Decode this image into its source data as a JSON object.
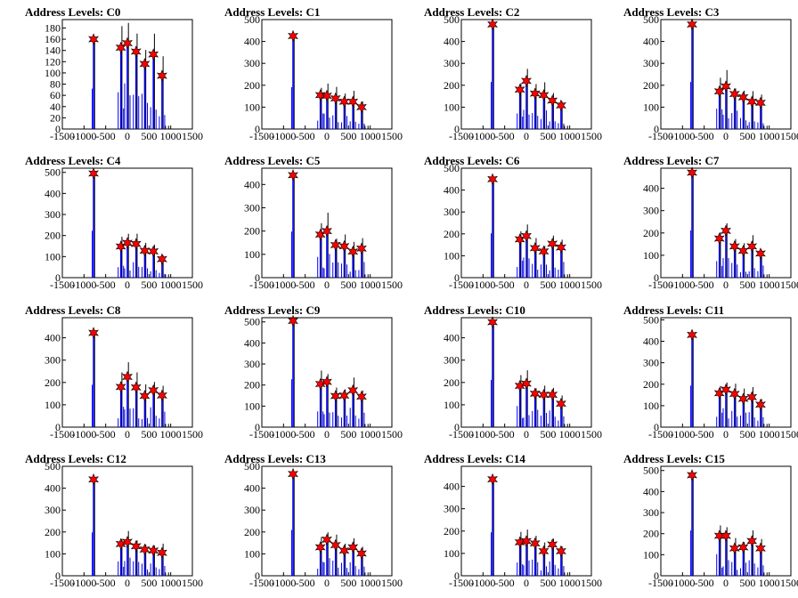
{
  "chart_data": [
    {
      "type": "bar",
      "title": "Address Levels: C0",
      "xlim": [
        -1500,
        1500
      ],
      "ylim": [
        0,
        195
      ],
      "yticks": [
        0,
        20,
        40,
        60,
        80,
        100,
        120,
        140,
        160,
        180
      ],
      "xticks": [
        -1500,
        -1000,
        -500,
        0,
        500,
        1000,
        1500
      ],
      "peaks": [
        {
          "x": -780,
          "y": 160
        },
        {
          "x": -150,
          "y": 145
        },
        {
          "x": 0,
          "y": 153
        },
        {
          "x": 200,
          "y": 138
        },
        {
          "x": 400,
          "y": 116
        },
        {
          "x": 600,
          "y": 133
        },
        {
          "x": 800,
          "y": 95
        }
      ]
    },
    {
      "type": "bar",
      "title": "Address Levels: C1",
      "xlim": [
        -1500,
        1500
      ],
      "ylim": [
        0,
        500
      ],
      "yticks": [
        0,
        100,
        200,
        300,
        400,
        500
      ],
      "xticks": [
        -1500,
        -1000,
        -500,
        0,
        500,
        1000,
        1500
      ],
      "peaks": [
        {
          "x": -780,
          "y": 425
        },
        {
          "x": -150,
          "y": 155
        },
        {
          "x": 0,
          "y": 152
        },
        {
          "x": 200,
          "y": 140
        },
        {
          "x": 400,
          "y": 125
        },
        {
          "x": 600,
          "y": 125
        },
        {
          "x": 800,
          "y": 100
        }
      ]
    },
    {
      "type": "bar",
      "title": "Address Levels: C2",
      "xlim": [
        -1500,
        1500
      ],
      "ylim": [
        0,
        500
      ],
      "yticks": [
        0,
        100,
        200,
        300,
        400,
        500
      ],
      "xticks": [
        -1500,
        -1000,
        -500,
        0,
        500,
        1000,
        1500
      ],
      "peaks": [
        {
          "x": -780,
          "y": 478
        },
        {
          "x": -150,
          "y": 180
        },
        {
          "x": 0,
          "y": 220
        },
        {
          "x": 200,
          "y": 162
        },
        {
          "x": 400,
          "y": 155
        },
        {
          "x": 600,
          "y": 130
        },
        {
          "x": 800,
          "y": 108
        }
      ]
    },
    {
      "type": "bar",
      "title": "Address Levels: C3",
      "xlim": [
        -1500,
        1500
      ],
      "ylim": [
        0,
        500
      ],
      "yticks": [
        0,
        100,
        200,
        300,
        400,
        500
      ],
      "xticks": [
        -1500,
        -1000,
        -500,
        0,
        500,
        1000,
        1500
      ],
      "peaks": [
        {
          "x": -780,
          "y": 478
        },
        {
          "x": -150,
          "y": 172
        },
        {
          "x": 0,
          "y": 195
        },
        {
          "x": 200,
          "y": 160
        },
        {
          "x": 400,
          "y": 145
        },
        {
          "x": 600,
          "y": 125
        },
        {
          "x": 800,
          "y": 120
        }
      ]
    },
    {
      "type": "bar",
      "title": "Address Levels: C4",
      "xlim": [
        -1500,
        1500
      ],
      "ylim": [
        0,
        520
      ],
      "yticks": [
        0,
        100,
        200,
        300,
        400,
        500
      ],
      "xticks": [
        -1500,
        -1000,
        -500,
        0,
        500,
        1000,
        1500
      ],
      "peaks": [
        {
          "x": -780,
          "y": 495
        },
        {
          "x": -150,
          "y": 148
        },
        {
          "x": 0,
          "y": 165
        },
        {
          "x": 200,
          "y": 160
        },
        {
          "x": 400,
          "y": 128
        },
        {
          "x": 600,
          "y": 125
        },
        {
          "x": 800,
          "y": 88
        }
      ]
    },
    {
      "type": "bar",
      "title": "Address Levels: C5",
      "xlim": [
        -1500,
        1500
      ],
      "ylim": [
        0,
        470
      ],
      "yticks": [
        0,
        100,
        200,
        300,
        400
      ],
      "xticks": [
        -1500,
        -1000,
        -500,
        0,
        500,
        1000,
        1500
      ],
      "peaks": [
        {
          "x": -780,
          "y": 440
        },
        {
          "x": -150,
          "y": 185
        },
        {
          "x": 0,
          "y": 200
        },
        {
          "x": 200,
          "y": 140
        },
        {
          "x": 400,
          "y": 135
        },
        {
          "x": 600,
          "y": 112
        },
        {
          "x": 800,
          "y": 125
        }
      ]
    },
    {
      "type": "bar",
      "title": "Address Levels: C6",
      "xlim": [
        -1500,
        1500
      ],
      "ylim": [
        0,
        500
      ],
      "yticks": [
        0,
        100,
        200,
        300,
        400,
        500
      ],
      "xticks": [
        -1500,
        -1000,
        -500,
        0,
        500,
        1000,
        1500
      ],
      "peaks": [
        {
          "x": -780,
          "y": 450
        },
        {
          "x": -150,
          "y": 175
        },
        {
          "x": 0,
          "y": 190
        },
        {
          "x": 200,
          "y": 135
        },
        {
          "x": 400,
          "y": 120
        },
        {
          "x": 600,
          "y": 155
        },
        {
          "x": 800,
          "y": 138
        }
      ]
    },
    {
      "type": "bar",
      "title": "Address Levels: C7",
      "xlim": [
        -1500,
        1500
      ],
      "ylim": [
        0,
        490
      ],
      "yticks": [
        0,
        100,
        200,
        300,
        400
      ],
      "xticks": [
        -1500,
        -1000,
        -500,
        0,
        500,
        1000,
        1500
      ],
      "peaks": [
        {
          "x": -780,
          "y": 470
        },
        {
          "x": -150,
          "y": 175
        },
        {
          "x": 0,
          "y": 210
        },
        {
          "x": 200,
          "y": 140
        },
        {
          "x": 400,
          "y": 120
        },
        {
          "x": 600,
          "y": 140
        },
        {
          "x": 800,
          "y": 108
        }
      ]
    },
    {
      "type": "bar",
      "title": "Address Levels: C8",
      "xlim": [
        -1500,
        1500
      ],
      "ylim": [
        0,
        490
      ],
      "yticks": [
        0,
        100,
        200,
        300,
        400
      ],
      "xticks": [
        -1500,
        -1000,
        -500,
        0,
        500,
        1000,
        1500
      ],
      "peaks": [
        {
          "x": -780,
          "y": 422
        },
        {
          "x": -150,
          "y": 180
        },
        {
          "x": 0,
          "y": 225
        },
        {
          "x": 200,
          "y": 178
        },
        {
          "x": 400,
          "y": 140
        },
        {
          "x": 600,
          "y": 165
        },
        {
          "x": 800,
          "y": 142
        }
      ]
    },
    {
      "type": "bar",
      "title": "Address Levels: C9",
      "xlim": [
        -1500,
        1500
      ],
      "ylim": [
        0,
        520
      ],
      "yticks": [
        0,
        100,
        200,
        300,
        400,
        500
      ],
      "xticks": [
        -1500,
        -1000,
        -500,
        0,
        500,
        1000,
        1500
      ],
      "peaks": [
        {
          "x": -780,
          "y": 505
        },
        {
          "x": -150,
          "y": 205
        },
        {
          "x": 0,
          "y": 215
        },
        {
          "x": 200,
          "y": 148
        },
        {
          "x": 400,
          "y": 150
        },
        {
          "x": 600,
          "y": 175
        },
        {
          "x": 800,
          "y": 145
        }
      ]
    },
    {
      "type": "bar",
      "title": "Address Levels: C10",
      "xlim": [
        -1500,
        1500
      ],
      "ylim": [
        0,
        490
      ],
      "yticks": [
        0,
        100,
        200,
        300,
        400
      ],
      "xticks": [
        -1500,
        -1000,
        -500,
        0,
        500,
        1000,
        1500
      ],
      "peaks": [
        {
          "x": -780,
          "y": 470
        },
        {
          "x": -150,
          "y": 185
        },
        {
          "x": 0,
          "y": 195
        },
        {
          "x": 200,
          "y": 150
        },
        {
          "x": 400,
          "y": 145
        },
        {
          "x": 600,
          "y": 145
        },
        {
          "x": 800,
          "y": 105
        }
      ]
    },
    {
      "type": "bar",
      "title": "Address Levels: C11",
      "xlim": [
        -1500,
        1500
      ],
      "ylim": [
        0,
        510
      ],
      "yticks": [
        0,
        100,
        200,
        300,
        400,
        500
      ],
      "xticks": [
        -1500,
        -1000,
        -500,
        0,
        500,
        1000,
        1500
      ],
      "peaks": [
        {
          "x": -780,
          "y": 430
        },
        {
          "x": -150,
          "y": 158
        },
        {
          "x": 0,
          "y": 175
        },
        {
          "x": 200,
          "y": 155
        },
        {
          "x": 400,
          "y": 132
        },
        {
          "x": 600,
          "y": 140
        },
        {
          "x": 800,
          "y": 105
        }
      ]
    },
    {
      "type": "bar",
      "title": "Address Levels: C12",
      "xlim": [
        -1500,
        1500
      ],
      "ylim": [
        0,
        500
      ],
      "yticks": [
        0,
        100,
        200,
        300,
        400,
        500
      ],
      "xticks": [
        -1500,
        -1000,
        -500,
        0,
        500,
        1000,
        1500
      ],
      "peaks": [
        {
          "x": -780,
          "y": 440
        },
        {
          "x": -150,
          "y": 145
        },
        {
          "x": 0,
          "y": 155
        },
        {
          "x": 200,
          "y": 135
        },
        {
          "x": 400,
          "y": 120
        },
        {
          "x": 600,
          "y": 115
        },
        {
          "x": 800,
          "y": 105
        }
      ]
    },
    {
      "type": "bar",
      "title": "Address Levels: C13",
      "xlim": [
        -1500,
        1500
      ],
      "ylim": [
        0,
        500
      ],
      "yticks": [
        0,
        100,
        200,
        300,
        400,
        500
      ],
      "xticks": [
        -1500,
        -1000,
        -500,
        0,
        500,
        1000,
        1500
      ],
      "peaks": [
        {
          "x": -780,
          "y": 465
        },
        {
          "x": -150,
          "y": 130
        },
        {
          "x": 0,
          "y": 165
        },
        {
          "x": 200,
          "y": 140
        },
        {
          "x": 400,
          "y": 115
        },
        {
          "x": 600,
          "y": 130
        },
        {
          "x": 800,
          "y": 102
        }
      ]
    },
    {
      "type": "bar",
      "title": "Address Levels: C14",
      "xlim": [
        -1500,
        1500
      ],
      "ylim": [
        0,
        490
      ],
      "yticks": [
        0,
        100,
        200,
        300,
        400
      ],
      "xticks": [
        -1500,
        -1000,
        -500,
        0,
        500,
        1000,
        1500
      ],
      "peaks": [
        {
          "x": -780,
          "y": 432
        },
        {
          "x": -150,
          "y": 150
        },
        {
          "x": 0,
          "y": 155
        },
        {
          "x": 200,
          "y": 145
        },
        {
          "x": 400,
          "y": 110
        },
        {
          "x": 600,
          "y": 140
        },
        {
          "x": 800,
          "y": 110
        }
      ]
    },
    {
      "type": "bar",
      "title": "Address Levels: C15",
      "xlim": [
        -1500,
        1500
      ],
      "ylim": [
        0,
        520
      ],
      "yticks": [
        0,
        100,
        200,
        300,
        400,
        500
      ],
      "xticks": [
        -1500,
        -1000,
        -500,
        0,
        500,
        1000,
        1500
      ],
      "peaks": [
        {
          "x": -780,
          "y": 478
        },
        {
          "x": -150,
          "y": 190
        },
        {
          "x": 0,
          "y": 190
        },
        {
          "x": 200,
          "y": 130
        },
        {
          "x": 400,
          "y": 135
        },
        {
          "x": 600,
          "y": 165
        },
        {
          "x": 800,
          "y": 130
        }
      ]
    }
  ],
  "colors": {
    "histogram": "#0000ff",
    "spikes": "#000000",
    "marker": "#ff0000",
    "marker_edge": "#000000",
    "frame": "#000000"
  }
}
